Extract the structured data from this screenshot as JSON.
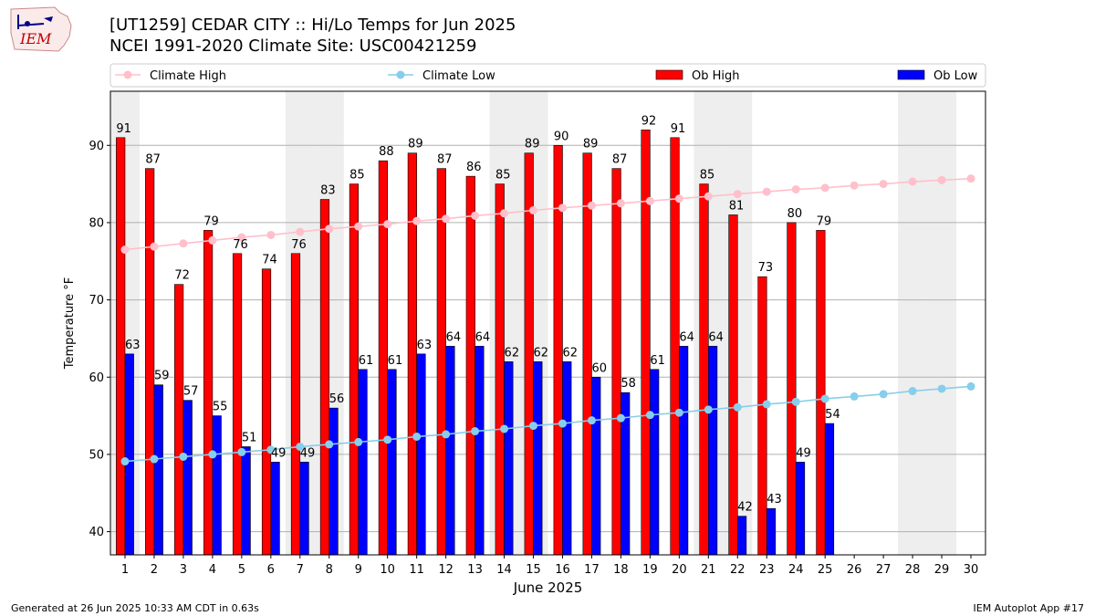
{
  "header": {
    "logo_text": "IEM",
    "title_line1": "[UT1259] CEDAR CITY :: Hi/Lo Temps for Jun 2025",
    "title_line2": "NCEI 1991-2020 Climate Site: USC00421259"
  },
  "footer": {
    "left": "Generated at 26 Jun 2025 10:33 AM CDT in 0.63s",
    "right": "IEM Autoplot App #17"
  },
  "colors": {
    "climate_high": "#ffc0cb",
    "climate_low": "#87ceeb",
    "ob_high": "#ff0000",
    "ob_low": "#0000ff",
    "weekend_shade": "#eeeeee",
    "grid": "#b0b0b0"
  },
  "chart_data": {
    "type": "bar",
    "xlabel": "June 2025",
    "ylabel": "Temperature °F",
    "ylim": [
      37,
      97
    ],
    "xlim": [
      0.5,
      30.5
    ],
    "yticks": [
      40,
      50,
      60,
      70,
      80,
      90
    ],
    "grid": "horizontal",
    "legend_placement": "top",
    "days": [
      1,
      2,
      3,
      4,
      5,
      6,
      7,
      8,
      9,
      10,
      11,
      12,
      13,
      14,
      15,
      16,
      17,
      18,
      19,
      20,
      21,
      22,
      23,
      24,
      25,
      26,
      27,
      28,
      29,
      30
    ],
    "weekend_days": [
      1,
      7,
      8,
      14,
      15,
      21,
      22,
      28,
      29
    ],
    "series": [
      {
        "name": "Climate High",
        "type": "line",
        "values": [
          76.5,
          76.9,
          77.3,
          77.7,
          78.1,
          78.4,
          78.8,
          79.2,
          79.5,
          79.8,
          80.2,
          80.5,
          80.9,
          81.2,
          81.6,
          81.9,
          82.2,
          82.5,
          82.8,
          83.1,
          83.4,
          83.7,
          84.0,
          84.3,
          84.5,
          84.8,
          85.0,
          85.3,
          85.5,
          85.7
        ]
      },
      {
        "name": "Climate Low",
        "type": "line",
        "values": [
          49.1,
          49.4,
          49.7,
          50.0,
          50.3,
          50.6,
          51.0,
          51.3,
          51.6,
          51.9,
          52.3,
          52.6,
          53.0,
          53.3,
          53.7,
          54.0,
          54.4,
          54.7,
          55.1,
          55.4,
          55.8,
          56.1,
          56.5,
          56.8,
          57.2,
          57.5,
          57.8,
          58.2,
          58.5,
          58.8
        ]
      },
      {
        "name": "Ob High",
        "type": "bar",
        "values": [
          91,
          87,
          72,
          79,
          76,
          74,
          76,
          83,
          85,
          88,
          89,
          87,
          86,
          85,
          89,
          90,
          89,
          87,
          92,
          91,
          85,
          81,
          73,
          80,
          79
        ]
      },
      {
        "name": "Ob Low",
        "type": "bar",
        "values": [
          63,
          59,
          57,
          55,
          51,
          49,
          49,
          56,
          61,
          61,
          63,
          64,
          64,
          62,
          62,
          62,
          60,
          58,
          61,
          64,
          64,
          42,
          43,
          49,
          54
        ]
      }
    ]
  }
}
